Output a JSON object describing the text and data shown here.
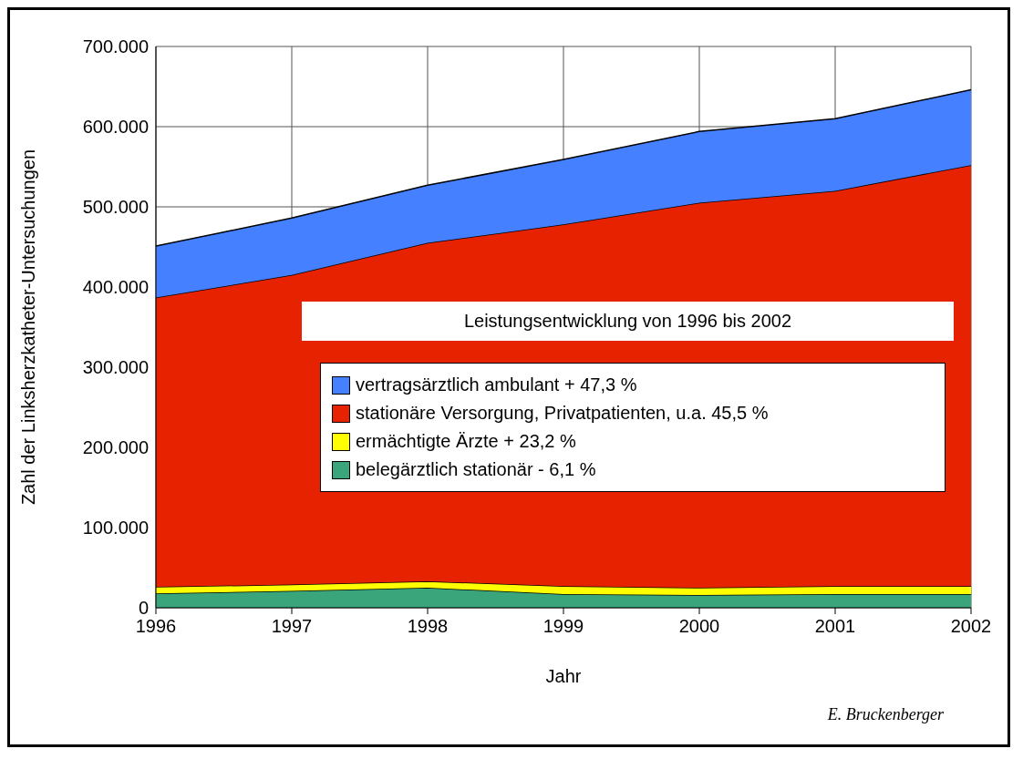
{
  "chart_data": {
    "type": "area",
    "stacked": true,
    "xlabel": "Jahr",
    "ylabel": "Zahl der Linksherzkatheter-Untersuchungen",
    "legend_title": "Leistungsentwicklung von 1996 bis 2002",
    "annotations": [
      "E. Bruckenberger"
    ],
    "x": [
      1996,
      1997,
      1998,
      1999,
      2000,
      2001,
      2002
    ],
    "series": [
      {
        "name": "belegärztlich stationär  - 6,1 %",
        "color": "#3aa57a",
        "values": [
          18000,
          21000,
          25000,
          17000,
          16000,
          17000,
          17000
        ]
      },
      {
        "name": "ermächtigte Ärzte  + 23,2 %",
        "color": "#ffff00",
        "values": [
          8000,
          8000,
          8000,
          10000,
          9000,
          10000,
          10000
        ]
      },
      {
        "name": "stationäre Versorgung, Privatpatienten, u.a. 45,5 %",
        "color": "#e62200",
        "values": [
          361000,
          386000,
          422000,
          451000,
          480000,
          493000,
          525000
        ]
      },
      {
        "name": "vertragsärztlich ambulant  + 47,3 %",
        "color": "#4480ff",
        "values": [
          64000,
          71000,
          72000,
          81000,
          89000,
          90000,
          94000
        ]
      }
    ],
    "xlim": [
      1996,
      2002
    ],
    "xticks": [
      1996,
      1997,
      1998,
      1999,
      2000,
      2001,
      2002
    ],
    "ylim": [
      0,
      700000
    ],
    "yticks": [
      0,
      {
        "value": 100000,
        "label": "100.000"
      },
      {
        "value": 200000,
        "label": "200.000"
      },
      {
        "value": 300000,
        "label": "300.000"
      },
      {
        "value": 400000,
        "label": "400.000"
      },
      {
        "value": 500000,
        "label": "500.000"
      },
      {
        "value": 600000,
        "label": "600.000"
      },
      {
        "value": 700000,
        "label": "700.000"
      }
    ],
    "grid": true,
    "legend": "center"
  }
}
